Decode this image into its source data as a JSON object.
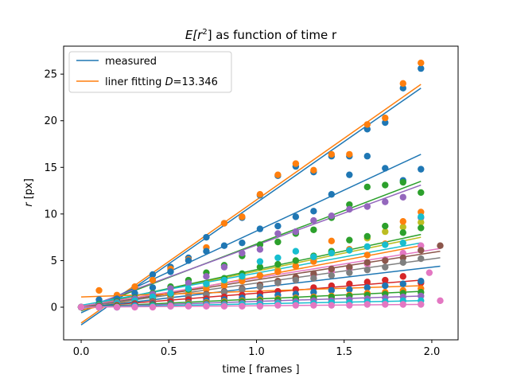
{
  "chart_data": {
    "type": "scatter",
    "title_prefix": "E[r",
    "title_sup": "2",
    "title_suffix": "] as function of time r",
    "xlabel": "time [ frames ]",
    "ylabel_var": "r",
    "ylabel_unit": " [px]",
    "xlim": [
      -0.1,
      2.15
    ],
    "ylim": [
      -3.5,
      28.0
    ],
    "xticks": [
      0.0,
      0.5,
      1.0,
      1.5,
      2.0
    ],
    "xtick_labels": [
      "0.0",
      "0.5",
      "1.0",
      "1.5",
      "2.0"
    ],
    "yticks": [
      0,
      5,
      10,
      15,
      20,
      25
    ],
    "ytick_labels": [
      "0",
      "5",
      "10",
      "15",
      "20",
      "25"
    ],
    "grid": false,
    "legend_position": "upper-left",
    "legend": [
      {
        "label": "measured",
        "color": "#1f77b4"
      },
      {
        "label_prefix": "liner fitting ",
        "label_var": "D",
        "label_suffix": "=13.346",
        "color": "#ff7f0e"
      }
    ],
    "x": [
      0.0,
      0.102,
      0.204,
      0.306,
      0.408,
      0.51,
      0.612,
      0.714,
      0.816,
      0.918,
      1.02,
      1.122,
      1.224,
      1.326,
      1.428,
      1.53,
      1.632,
      1.734,
      1.836,
      1.938
    ],
    "series": [
      {
        "color": "#1f77b4",
        "points": [
          0.0,
          0.8,
          1.2,
          2.1,
          3.5,
          4.3,
          5.3,
          7.5,
          9.0,
          9.6,
          12.0,
          14.1,
          15.1,
          14.5,
          16.2,
          16.2,
          19.1,
          19.8,
          23.5,
          25.6
        ],
        "fit": [
          [
            0.0,
            -1.9
          ],
          [
            1.938,
            23.5
          ]
        ]
      },
      {
        "color": "#ff7f0e",
        "points": [
          0.0,
          1.8,
          1.3,
          2.2,
          2.9,
          4.1,
          5.1,
          6.4,
          9.0,
          9.7,
          12.1,
          14.2,
          15.4,
          14.7,
          16.4,
          16.4,
          19.6,
          20.3,
          24.0,
          26.2
        ],
        "fit": [
          [
            0.0,
            -1.7
          ],
          [
            1.938,
            23.9
          ]
        ]
      },
      {
        "color": "#1f77b4",
        "points": [
          0.0,
          0.4,
          0.9,
          1.5,
          2.1,
          3.8,
          5.0,
          6.0,
          6.6,
          6.9,
          8.4,
          8.7,
          9.7,
          10.3,
          12.1,
          14.2,
          16.2,
          14.9,
          13.6,
          14.8
        ],
        "fit": [
          [
            0.0,
            -0.6
          ],
          [
            1.938,
            16.4
          ]
        ]
      },
      {
        "color": "#2ca02c",
        "points": [
          0.0,
          0.3,
          0.6,
          1.0,
          1.5,
          2.2,
          2.9,
          3.7,
          4.5,
          5.5,
          6.7,
          7.0,
          7.9,
          8.3,
          9.6,
          11.0,
          12.9,
          13.1,
          13.4,
          12.3
        ],
        "fit": [
          [
            0.0,
            -0.4
          ],
          [
            1.938,
            13.5
          ]
        ]
      },
      {
        "color": "#9467bd",
        "points": [
          0.0,
          0.2,
          0.5,
          0.9,
          1.4,
          2.0,
          2.6,
          3.3,
          4.3,
          5.8,
          6.2,
          7.9,
          8.1,
          9.3,
          9.8,
          10.5,
          10.8,
          11.3,
          11.8,
          9.6
        ],
        "fit": [
          [
            0.0,
            -0.2
          ],
          [
            1.938,
            13.1
          ]
        ]
      },
      {
        "color": "#bcbd22",
        "points": [
          0.0,
          0.1,
          0.3,
          0.5,
          0.9,
          1.2,
          1.8,
          2.1,
          2.5,
          3.1,
          3.4,
          4.0,
          4.4,
          5.1,
          5.9,
          6.2,
          7.4,
          8.1,
          8.6,
          9.1
        ],
        "fit": [
          [
            0.0,
            0.0
          ],
          [
            1.938,
            7.5
          ]
        ]
      },
      {
        "color": "#ff7f0e",
        "points": [
          0.0,
          0.1,
          0.2,
          0.4,
          0.7,
          1.1,
          1.4,
          1.9,
          2.3,
          2.8,
          3.4,
          3.8,
          4.4,
          4.9,
          7.1,
          6.2,
          5.6,
          6.8,
          9.2,
          10.2
        ],
        "fit": [
          [
            0.0,
            -0.3
          ],
          [
            1.938,
            6.6
          ]
        ]
      },
      {
        "color": "#2ca02c",
        "points": [
          0.0,
          0.2,
          0.4,
          0.6,
          1.0,
          1.4,
          1.9,
          2.5,
          3.1,
          3.6,
          4.3,
          4.6,
          5.0,
          5.5,
          6.0,
          7.2,
          7.6,
          8.7,
          8.0,
          8.5
        ],
        "fit": [
          [
            0.0,
            0.0
          ],
          [
            1.938,
            7.8
          ]
        ]
      },
      {
        "color": "#17becf",
        "points": [
          0.0,
          0.2,
          0.4,
          0.7,
          1.1,
          1.5,
          2.0,
          2.5,
          2.9,
          3.3,
          4.9,
          5.3,
          6.0,
          5.4,
          5.8,
          6.1,
          6.5,
          6.7,
          6.9,
          9.7
        ],
        "fit": [
          [
            0.0,
            0.2
          ],
          [
            1.938,
            6.9
          ]
        ]
      },
      {
        "color": "#e377c2",
        "points": [
          0.0,
          0.1,
          0.2,
          0.3,
          0.5,
          0.8,
          1.1,
          1.3,
          1.6,
          1.9,
          2.2,
          2.6,
          3.0,
          3.4,
          3.8,
          4.1,
          4.6,
          5.1,
          5.8,
          6.6
        ],
        "fit": [
          [
            0.0,
            0.1
          ],
          [
            2.048,
            6.3
          ]
        ]
      },
      {
        "color": "#8c564b",
        "points": [
          0.0,
          0.1,
          0.2,
          0.4,
          0.6,
          0.8,
          1.1,
          1.4,
          1.7,
          2.0,
          2.4,
          2.8,
          3.2,
          3.6,
          4.1,
          4.3,
          4.8,
          5.0,
          5.3,
          6.1
        ],
        "fit": [
          [
            0.0,
            0.0
          ],
          [
            2.048,
            6.0
          ]
        ]
      },
      {
        "color": "#7f7f7f",
        "points": [
          0.0,
          0.0,
          0.1,
          0.3,
          0.5,
          0.8,
          1.1,
          1.3,
          1.6,
          1.9,
          2.2,
          2.6,
          2.9,
          3.1,
          3.4,
          3.7,
          4.0,
          4.3,
          4.8,
          5.2
        ],
        "fit": [
          [
            0.0,
            0.0
          ],
          [
            2.048,
            5.3
          ]
        ]
      },
      {
        "color": "#d62728",
        "points": [
          0.0,
          0.1,
          0.2,
          0.3,
          0.4,
          0.6,
          0.8,
          0.9,
          1.1,
          1.3,
          1.5,
          1.7,
          1.9,
          2.1,
          2.3,
          2.5,
          2.7,
          2.9,
          3.3,
          2.6
        ],
        "fit": [
          [
            0.0,
            0.0
          ],
          [
            1.938,
            2.9
          ]
        ]
      },
      {
        "color": "#1f77b4",
        "points": [
          0.0,
          0.0,
          0.1,
          0.2,
          0.3,
          0.4,
          0.5,
          0.7,
          0.8,
          1.0,
          1.1,
          1.3,
          1.4,
          1.6,
          1.8,
          1.9,
          2.1,
          2.3,
          2.5,
          2.8
        ],
        "fit": [
          [
            0.0,
            -0.1
          ],
          [
            2.048,
            4.4
          ]
        ]
      },
      {
        "color": "#ff7f0e",
        "points": [
          0.0,
          0.0,
          0.1,
          0.1,
          0.2,
          0.3,
          0.4,
          0.5,
          0.6,
          0.7,
          0.8,
          0.9,
          1.0,
          1.1,
          1.2,
          1.3,
          1.5,
          1.6,
          1.8,
          2.0
        ],
        "fit": [
          [
            0.0,
            1.1
          ],
          [
            1.938,
            2.3
          ]
        ]
      },
      {
        "color": "#2ca02c",
        "points": [
          0.0,
          0.0,
          0.1,
          0.1,
          0.2,
          0.3,
          0.3,
          0.4,
          0.5,
          0.6,
          0.7,
          0.8,
          0.9,
          1.0,
          1.1,
          1.2,
          1.3,
          1.4,
          1.5,
          1.6
        ],
        "fit": [
          [
            0.0,
            0.0
          ],
          [
            1.938,
            1.7
          ]
        ]
      },
      {
        "color": "#9467bd",
        "points": [
          0.0,
          0.0,
          0.0,
          0.1,
          0.1,
          0.2,
          0.2,
          0.3,
          0.3,
          0.4,
          0.5,
          0.5,
          0.6,
          0.7,
          0.7,
          0.8,
          0.9,
          1.0,
          1.1,
          1.2
        ],
        "fit": [
          [
            0.0,
            0.0
          ],
          [
            1.938,
            1.2
          ]
        ]
      },
      {
        "color": "#17becf",
        "points": [
          0.0,
          0.0,
          0.0,
          0.1,
          0.1,
          0.1,
          0.2,
          0.2,
          0.2,
          0.3,
          0.3,
          0.4,
          0.4,
          0.4,
          0.5,
          0.5,
          0.6,
          0.6,
          0.7,
          0.7
        ],
        "fit": [
          [
            0.0,
            0.0
          ],
          [
            1.938,
            0.7
          ]
        ]
      },
      {
        "color": "#e377c2",
        "points": [
          0.0,
          0.0,
          0.0,
          0.0,
          0.0,
          0.1,
          0.1,
          0.1,
          0.1,
          0.1,
          0.1,
          0.2,
          0.2,
          0.2,
          0.2,
          0.2,
          0.3,
          0.3,
          0.3,
          0.3
        ],
        "fit": [
          [
            0.0,
            0.0
          ],
          [
            1.938,
            0.3
          ]
        ]
      }
    ],
    "extra_points": [
      {
        "color": "#e377c2",
        "x": 2.048,
        "y": 0.7
      },
      {
        "color": "#e377c2",
        "x": 1.986,
        "y": 3.7
      },
      {
        "color": "#8c564b",
        "x": 2.048,
        "y": 6.6
      }
    ]
  }
}
